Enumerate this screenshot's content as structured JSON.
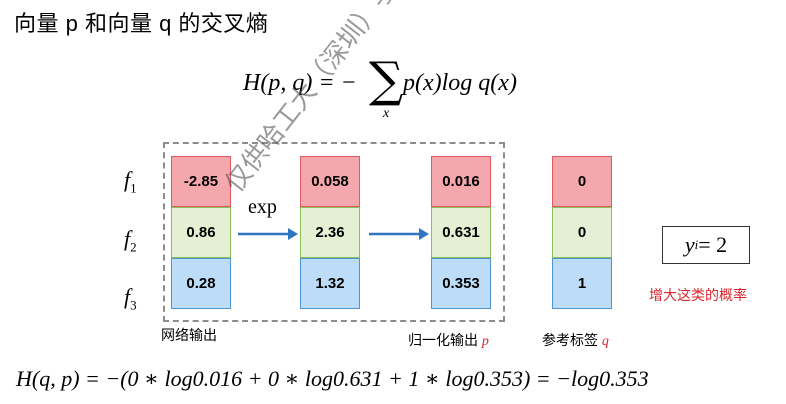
{
  "title": "向量 p 和向量 q 的交叉熵",
  "formula_top": {
    "lhs": "H(p, q) = −",
    "sigma": "∑",
    "sub": "x",
    "rhs": "p(x)log q(x)"
  },
  "row_labels": [
    {
      "base": "f",
      "sub": "1"
    },
    {
      "base": "f",
      "sub": "2"
    },
    {
      "base": "f",
      "sub": "3"
    }
  ],
  "columns": {
    "network_output": {
      "label": "网络输出",
      "values": [
        "-2.85",
        "0.86",
        "0.28"
      ]
    },
    "exp_output": {
      "values": [
        "0.058",
        "2.36",
        "1.32"
      ]
    },
    "normalized_output": {
      "label": "归一化输出",
      "symbol": "p",
      "values": [
        "0.016",
        "0.631",
        "0.353"
      ]
    },
    "reference_label": {
      "label": "参考标签",
      "symbol": "q",
      "values": [
        "0",
        "0",
        "1"
      ]
    }
  },
  "arrow_label": "exp",
  "y_box": {
    "var": "y",
    "sub": "i",
    "rest": " = 2"
  },
  "emphasis_text": "增大这类的概率",
  "formula_bottom": "H(q, p) = −(0 ∗ log0.016 + 0 ∗ log0.631 + 1 ∗ log0.353) = −log0.353",
  "watermark": "仅供哈工大（深圳）学生使用，禁止外传",
  "colors": {
    "red_cell": "#f4a7ad",
    "green_cell": "#e4efd3",
    "blue_cell": "#bcdcf7",
    "arrow": "#2f75c0",
    "emphasis": "#d9262e"
  }
}
